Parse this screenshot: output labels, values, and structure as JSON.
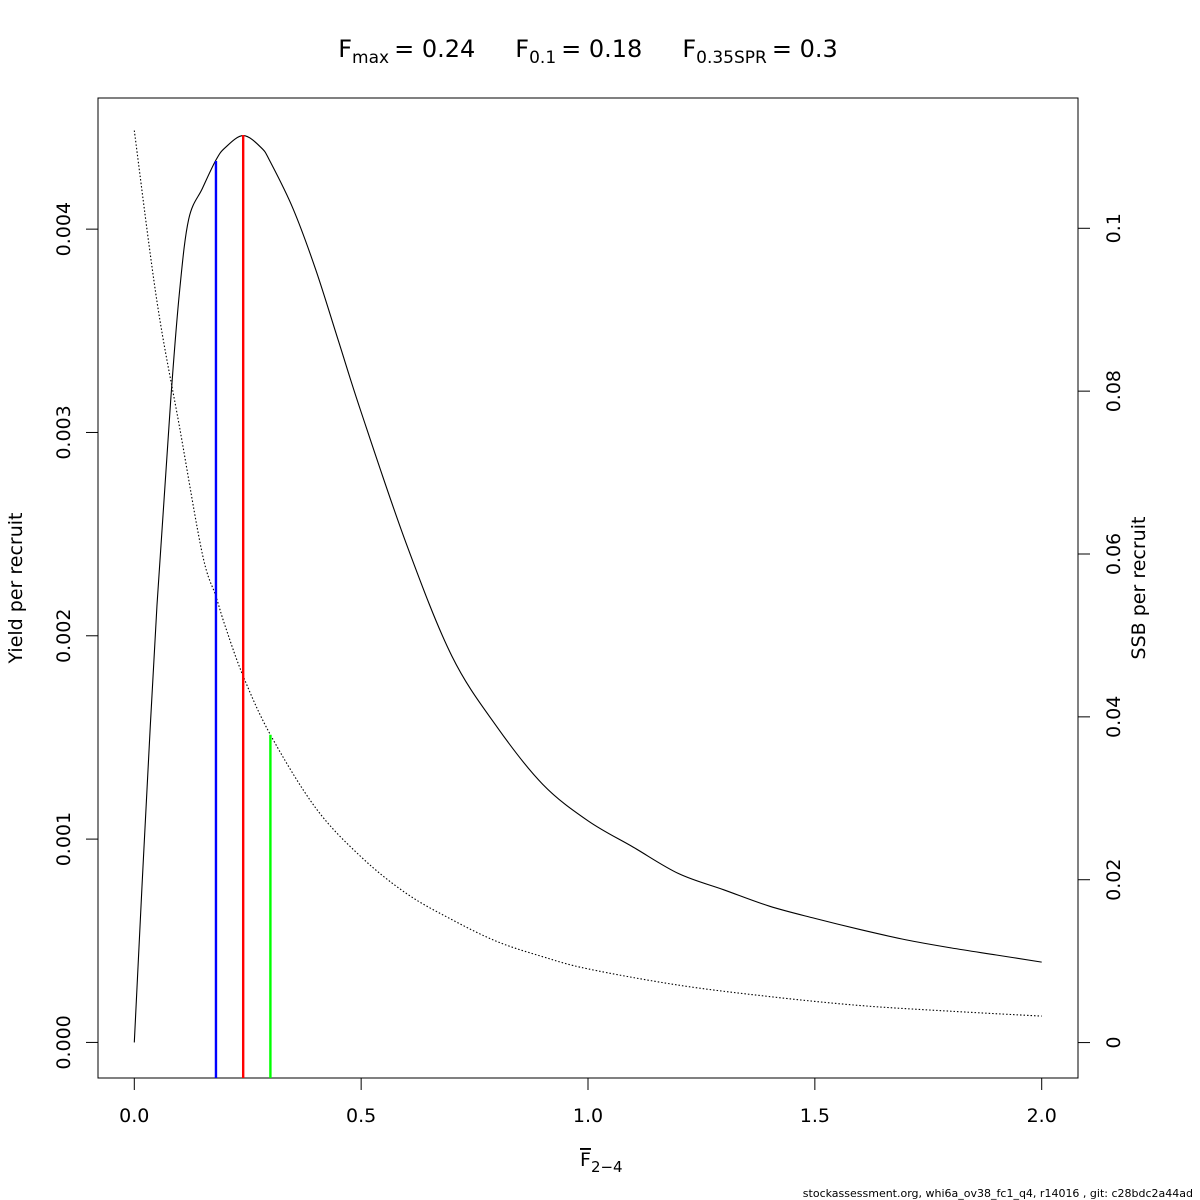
{
  "chart_data": {
    "type": "line",
    "title_parts": [
      {
        "main": "F",
        "sub": "max",
        "value": "= 0.24"
      },
      {
        "main": "F",
        "sub": "0.1",
        "value": "= 0.18"
      },
      {
        "main": "F",
        "sub": "0.35SPR",
        "value": "= 0.3"
      }
    ],
    "xlabel_main": "F",
    "xlabel_sub": "2−4",
    "ylabel_left": "Yield per recruit",
    "ylabel_right": "SSB per recruit",
    "xlim": [
      -0.08,
      2.08
    ],
    "ylim_left": [
      -0.000175,
      0.004645
    ],
    "ylim_right": [
      -0.00435,
      0.116
    ],
    "x_ticks": [
      0,
      0.5,
      1,
      1.5,
      2
    ],
    "x_tick_labels": [
      "0.0",
      "0.5",
      "1.0",
      "1.5",
      "2.0"
    ],
    "y_left_ticks": [
      0,
      0.001,
      0.002,
      0.003,
      0.004
    ],
    "y_left_tick_labels": [
      "0.000",
      "0.001",
      "0.002",
      "0.003",
      "0.004"
    ],
    "y_right_ticks": [
      0,
      0.02,
      0.04,
      0.06,
      0.08,
      0.1
    ],
    "y_right_tick_labels": [
      "0",
      "0.02",
      "0.04",
      "0.06",
      "0.08",
      "0.1"
    ],
    "series": [
      {
        "axis": "left",
        "style": "solid",
        "color": "#000000",
        "x": [
          0,
          0.02,
          0.05,
          0.08,
          0.1,
          0.12,
          0.15,
          0.18,
          0.2,
          0.24,
          0.28,
          0.3,
          0.35,
          0.4,
          0.45,
          0.5,
          0.6,
          0.7,
          0.8,
          0.9,
          1.0,
          1.1,
          1.2,
          1.3,
          1.4,
          1.5,
          1.6,
          1.7,
          1.8,
          1.9,
          2.0
        ],
        "y": [
          0,
          0.0009,
          0.00215,
          0.00315,
          0.0037,
          0.00405,
          0.0042,
          0.00434,
          0.0044,
          0.00446,
          0.0044,
          0.00433,
          0.0041,
          0.0038,
          0.00345,
          0.0031,
          0.00245,
          0.0019,
          0.00155,
          0.00127,
          0.00109,
          0.00096,
          0.00083,
          0.00075,
          0.00067,
          0.00061,
          0.000555,
          0.000505,
          0.000465,
          0.00043,
          0.000395
        ]
      },
      {
        "axis": "right",
        "style": "dotted",
        "color": "#000000",
        "x": [
          0,
          0.05,
          0.1,
          0.15,
          0.18,
          0.2,
          0.24,
          0.3,
          0.4,
          0.5,
          0.6,
          0.7,
          0.8,
          0.9,
          1.0,
          1.2,
          1.4,
          1.6,
          1.8,
          2.0
        ],
        "y": [
          0.112,
          0.091,
          0.0755,
          0.06,
          0.0548,
          0.0512,
          0.045,
          0.0378,
          0.0288,
          0.0228,
          0.0183,
          0.0151,
          0.0124,
          0.01055,
          0.00905,
          0.00705,
          0.00565,
          0.00455,
          0.00385,
          0.00325
        ]
      }
    ],
    "reference_lines": [
      {
        "x": 0.18,
        "y_top_left": 0.004335,
        "color": "#0000ff"
      },
      {
        "x": 0.24,
        "y_top_left": 0.004463,
        "color": "#ff0000"
      },
      {
        "x": 0.3,
        "y_top_right": 0.0378,
        "color": "#00ff00"
      }
    ]
  },
  "footer_text": "stockassessment.org, whi6a_ov38_fc1_q4, r14016 , git: c28bdc2a44ad"
}
